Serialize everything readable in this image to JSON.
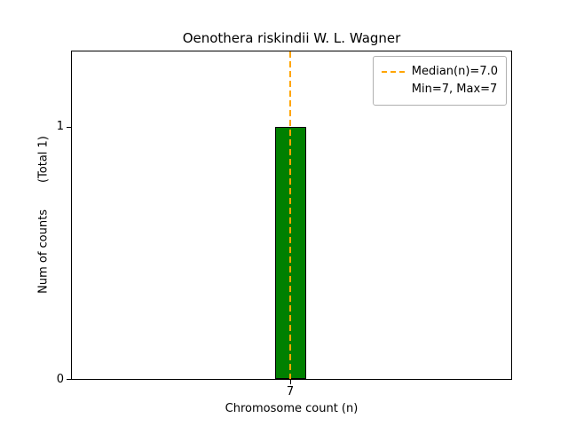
{
  "chart_data": {
    "type": "bar",
    "title": "Oenothera riskindii W. L. Wagner",
    "xlabel": "Chromosome count (n)",
    "ylabel": "Num of counts",
    "total_label": "(Total 1)",
    "categories": [
      7
    ],
    "values": [
      1
    ],
    "xtick_labels": [
      "7"
    ],
    "yticks": [
      0,
      1
    ],
    "ytick_labels": [
      "0",
      "1"
    ],
    "ylim": [
      0,
      1.3
    ],
    "bar_color": "#008000",
    "bar_edge_color": "#000000",
    "median_line": {
      "value": 7.0,
      "color": "#FFA500",
      "style": "dashed"
    },
    "legend_position": "upper right",
    "legend_labels": [
      "Median(n)=7.0",
      "Min=7, Max=7"
    ],
    "grid": false,
    "stats": {
      "median": 7.0,
      "min": 7,
      "max": 7,
      "total": 1
    }
  }
}
